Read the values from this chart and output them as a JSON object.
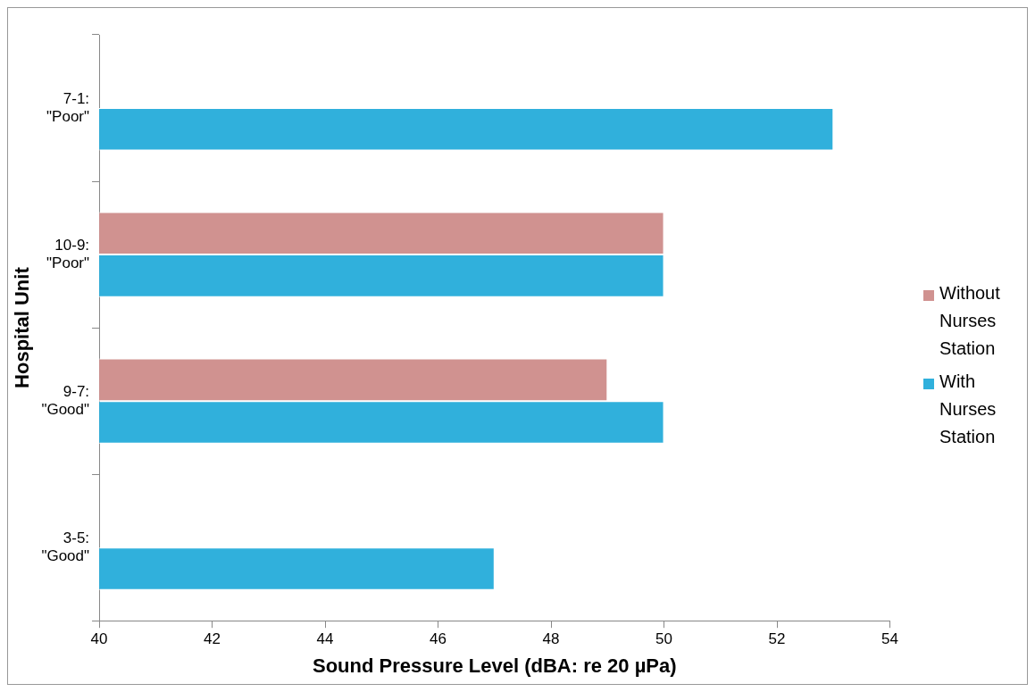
{
  "chart_data": {
    "type": "bar",
    "orientation": "horizontal",
    "categories": [
      "7-1: \"Poor\"",
      "10-9: \"Poor\"",
      "9-7: \"Good\"",
      "3-5: \"Good\""
    ],
    "series": [
      {
        "name": "Without Nurses Station",
        "color": "#d09290",
        "values": [
          null,
          50,
          49,
          null
        ]
      },
      {
        "name": "With Nurses Station",
        "color": "#30b0dc",
        "values": [
          53,
          50,
          50,
          47
        ]
      }
    ],
    "xlim": [
      40,
      54
    ],
    "xticks": [
      40,
      42,
      44,
      46,
      48,
      50,
      52,
      54
    ],
    "xlabel": "Sound Pressure Level (dBA: re 20 µPa)",
    "ylabel": "Hospital Unit",
    "grid": false,
    "legend": "right"
  }
}
